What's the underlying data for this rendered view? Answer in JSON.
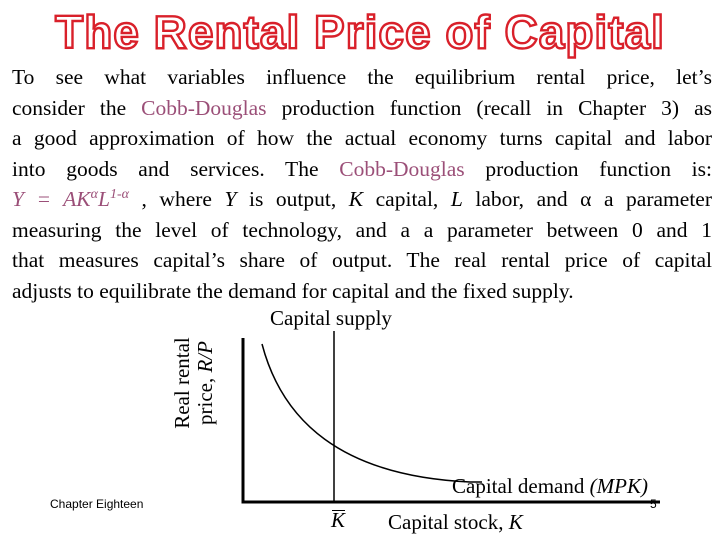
{
  "slide": {
    "title": "The Rental Price of Capital",
    "lines": {
      "l1": "To see what variables influence the equilibrium rental price, let’s",
      "l2_a": "consider the ",
      "l2_hl": "Cobb-Douglas",
      "l2_b": " production function (recall in Chapter 3) as",
      "l3": "a good approximation of how the actual economy turns capital and labor",
      "l4_a": "into goods and services.  The ",
      "l4_hl": "Cobb-Douglas",
      "l4_b": " production function is:",
      "l5_eq_a": "Y = AK",
      "l5_eq_sup1": "α",
      "l5_eq_b": "L",
      "l5_eq_sup2": "1-α",
      "l5_a": " , where ",
      "l5_y": "Y",
      "l5_b": " is output, ",
      "l5_k": "K",
      "l5_c": " capital, ",
      "l5_l": "L",
      "l5_d": " labor, and  ",
      "l5_alpha": "α",
      "l5_e": " a parameter",
      "l6": "measuring the level of technology, and a a parameter between 0 and 1",
      "l7": "that measures capital’s share of output. The real rental price of capital",
      "l8": "adjusts to equilibrate the demand for capital and the fixed supply."
    }
  },
  "chart": {
    "supply_label": "Capital supply",
    "y_axis_label_1": "Real rental",
    "y_axis_label_2a": "price, ",
    "y_axis_label_2b": "R/P",
    "demand_label_a": "Capital demand ",
    "demand_label_b": "(MPK)",
    "x_axis_label_a": "Capital stock, ",
    "x_axis_label_b": "K",
    "kbar_label": "K"
  },
  "footer": {
    "chapter": "Chapter Eighteen",
    "page": "5"
  },
  "colors": {
    "title_outline": "#d9202a",
    "highlight": "#9b4f78"
  }
}
